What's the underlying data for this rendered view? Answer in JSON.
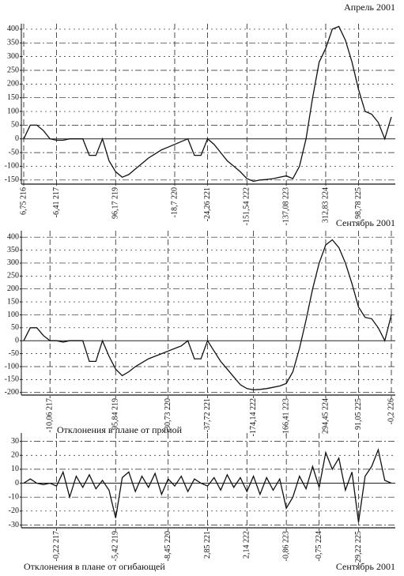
{
  "chart_data": [
    {
      "type": "line",
      "title": "Апрель 2001",
      "categories": [
        "6,75 216",
        null,
        null,
        null,
        null,
        "-6,41 217",
        null,
        null,
        null,
        null,
        null,
        null,
        null,
        null,
        "96,17 219",
        null,
        null,
        null,
        null,
        null,
        null,
        null,
        null,
        "-18,7 220",
        null,
        null,
        null,
        null,
        "-24,26 221",
        null,
        null,
        null,
        null,
        null,
        "-151,54 222",
        null,
        null,
        null,
        null,
        null,
        "-137,08 223",
        null,
        null,
        null,
        null,
        null,
        "312,83 224",
        null,
        null,
        null,
        null,
        "98,78 225",
        null,
        null,
        null,
        null,
        null
      ],
      "values": [
        0,
        50,
        50,
        30,
        0,
        -5,
        -5,
        0,
        0,
        0,
        -60,
        -60,
        0,
        -80,
        -120,
        -140,
        -130,
        -110,
        -90,
        -70,
        -55,
        -40,
        -30,
        -20,
        -10,
        0,
        -60,
        -60,
        0,
        -20,
        -50,
        -80,
        -100,
        -120,
        -145,
        -155,
        -150,
        -148,
        -145,
        -140,
        -135,
        -145,
        -100,
        0,
        150,
        280,
        330,
        400,
        410,
        360,
        280,
        180,
        100,
        90,
        60,
        0,
        80
      ],
      "color": "#111111",
      "ylim": [
        -165,
        420
      ],
      "yticks": [
        -150,
        -100,
        -50,
        0,
        50,
        100,
        150,
        200,
        250,
        300,
        350,
        400
      ],
      "grid": true
    },
    {
      "type": "line",
      "title": "Сентябрь 2001",
      "xlabel": "Отклонения в плане от прямой",
      "categories": [
        null,
        null,
        null,
        null,
        "-10,06 217",
        null,
        null,
        null,
        null,
        null,
        null,
        null,
        null,
        null,
        "95,84 219",
        null,
        null,
        null,
        null,
        null,
        null,
        null,
        "-30,73 220",
        null,
        null,
        null,
        null,
        null,
        "-37,72 221",
        null,
        null,
        null,
        null,
        null,
        null,
        "-174,14 222",
        null,
        null,
        null,
        null,
        "-166,41 223",
        null,
        null,
        null,
        null,
        null,
        "294,45 224",
        null,
        null,
        null,
        null,
        "91,05 225",
        null,
        null,
        null,
        null,
        "-0,2 226"
      ],
      "values": [
        0,
        50,
        50,
        20,
        0,
        0,
        -5,
        0,
        0,
        0,
        -80,
        -80,
        0,
        -60,
        -110,
        -135,
        -120,
        -100,
        -85,
        -70,
        -60,
        -50,
        -40,
        -30,
        -20,
        0,
        -70,
        -70,
        0,
        -40,
        -80,
        -110,
        -140,
        -170,
        -185,
        -190,
        -188,
        -185,
        -180,
        -175,
        -165,
        -120,
        -30,
        80,
        200,
        300,
        370,
        390,
        360,
        300,
        220,
        130,
        90,
        85,
        50,
        0,
        100
      ],
      "color": "#111111",
      "ylim": [
        -210,
        425
      ],
      "yticks": [
        -200,
        -150,
        -100,
        -50,
        0,
        50,
        100,
        150,
        200,
        250,
        300,
        350,
        400
      ],
      "grid": true
    },
    {
      "type": "line",
      "title": "Сентябрь 2001",
      "xlabel": "Отклонения в плане от огибающей",
      "categories": [
        null,
        null,
        null,
        null,
        null,
        "-0,22 217",
        null,
        null,
        null,
        null,
        null,
        null,
        null,
        null,
        "-5,42 219",
        null,
        null,
        null,
        null,
        null,
        null,
        null,
        "-8,45 220",
        null,
        null,
        null,
        null,
        null,
        "2,85 221",
        null,
        null,
        null,
        null,
        null,
        "2,14 222",
        null,
        null,
        null,
        null,
        null,
        "-0,86 223",
        null,
        null,
        null,
        null,
        "-0,75 224",
        null,
        null,
        null,
        null,
        null,
        "-29,22 225",
        null,
        null,
        null,
        null,
        null
      ],
      "values": [
        0,
        3,
        0,
        -1,
        0,
        -2,
        8,
        -10,
        5,
        -3,
        6,
        -4,
        2,
        -5,
        -25,
        4,
        8,
        -6,
        5,
        -3,
        7,
        -8,
        3,
        -2,
        5,
        -6,
        3,
        0,
        -2,
        4,
        -5,
        6,
        -3,
        4,
        -6,
        5,
        -8,
        4,
        -5,
        3,
        -18,
        -10,
        5,
        -4,
        12,
        -3,
        22,
        10,
        18,
        -5,
        8,
        -28,
        5,
        12,
        24,
        2,
        0
      ],
      "color": "#111111",
      "ylim": [
        -32,
        36
      ],
      "yticks": [
        -30,
        -20,
        -10,
        0,
        10,
        20,
        30
      ],
      "grid": true
    }
  ]
}
